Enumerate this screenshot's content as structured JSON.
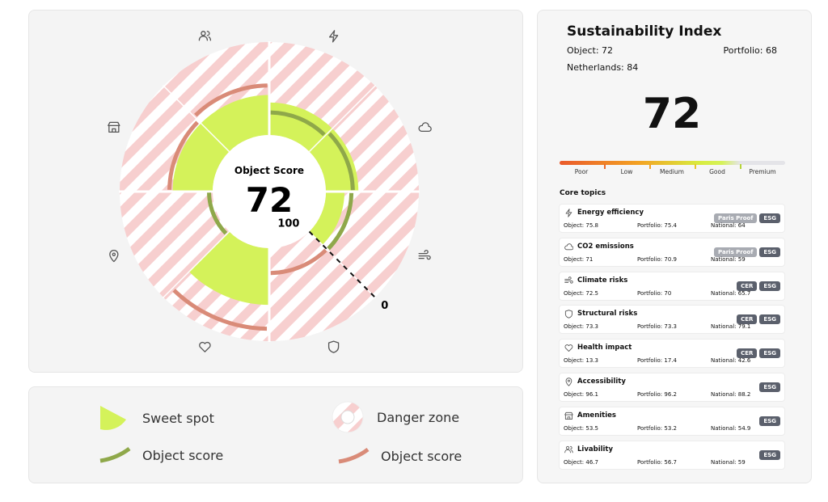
{
  "chart": {
    "center_label": "Object Score",
    "rlim": [
      0,
      100
    ],
    "rticks": [
      100,
      0
    ],
    "sweet_spot": [
      65,
      65,
      80,
      null,
      39,
      null,
      57,
      57
    ],
    "arc_colors": [
      "#8fa84a",
      "#8fa84a",
      "#8fa84a",
      "#d98b78",
      "#d98b78",
      "#8fa84a",
      "#d98b78",
      "#d98b78"
    ]
  },
  "legend": [
    "Sweet spot",
    "Danger zone",
    "Object score",
    "Object score"
  ],
  "index": {
    "title": "Sustainability Index",
    "object_label": "Object:",
    "object": 72,
    "portfolio_label": "Portfolio:",
    "portfolio": 68,
    "national_label": "Netherlands:",
    "national": 84,
    "score": 72,
    "levels": [
      "Poor",
      "Low",
      "Medium",
      "Good",
      "Premium"
    ],
    "core_topics": "Core topics"
  },
  "labels": {
    "object": "Object:",
    "portfolio": "Portfolio:",
    "national": "National:"
  },
  "topics": [
    {
      "name": "Energy efficiency",
      "object": 75.8,
      "portfolio": 75.4,
      "national": 64,
      "tags": [
        "Paris Proof",
        "ESG"
      ]
    },
    {
      "name": "CO2 emissions",
      "object": 71,
      "portfolio": 70.9,
      "national": 59,
      "tags": [
        "Paris Proof",
        "ESG"
      ]
    },
    {
      "name": "Climate risks",
      "object": 72.5,
      "portfolio": 70,
      "national": 65.7,
      "tags": [
        "CER",
        "ESG"
      ]
    },
    {
      "name": "Structural risks",
      "object": 73.3,
      "portfolio": 73.3,
      "national": 79.1,
      "tags": [
        "CER",
        "ESG"
      ]
    },
    {
      "name": "Health impact",
      "object": 13.3,
      "portfolio": 17.4,
      "national": 42.6,
      "tags": [
        "CER",
        "ESG"
      ]
    },
    {
      "name": "Accessibility",
      "object": 96.1,
      "portfolio": 96.2,
      "national": 88.2,
      "tags": [
        "ESG"
      ]
    },
    {
      "name": "Amenities",
      "object": 53.5,
      "portfolio": 53.2,
      "national": 54.9,
      "tags": [
        "ESG"
      ]
    },
    {
      "name": "Livability",
      "object": 46.7,
      "portfolio": 56.7,
      "national": 59,
      "tags": [
        "ESG"
      ]
    }
  ]
}
